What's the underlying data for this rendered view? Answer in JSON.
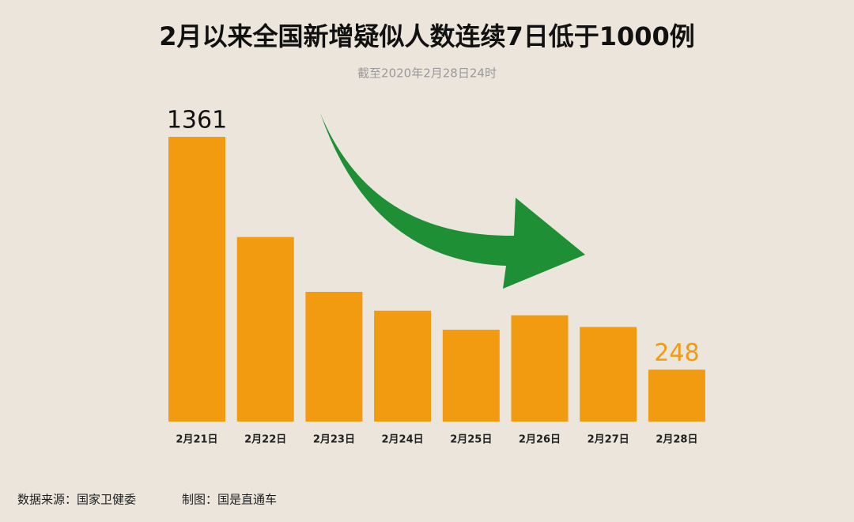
{
  "chart_data": {
    "type": "bar",
    "title": "2月以来全国新增疑似人数连续7日低于1000例",
    "subtitle": "截至2020年2月28日24时",
    "categories": [
      "2月21日",
      "2月22日",
      "2月23日",
      "2月24日",
      "2月25日",
      "2月26日",
      "2月27日",
      "2月28日"
    ],
    "values": [
      1361,
      882,
      620,
      530,
      439,
      508,
      452,
      248
    ],
    "color": "#f29b10",
    "source": "数据来源：国家卫健委",
    "credit": "制图：国是直通车"
  }
}
